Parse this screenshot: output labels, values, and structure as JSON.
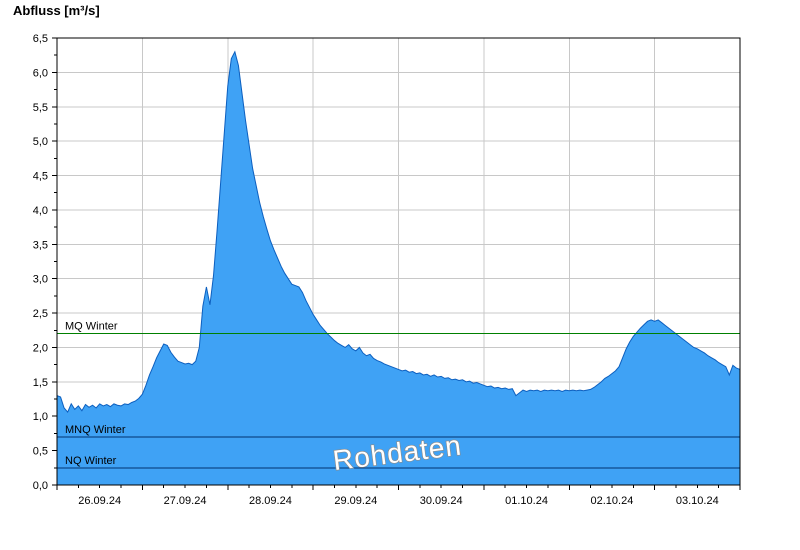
{
  "title": "Abfluss [m³/s]",
  "chart_data": {
    "type": "area",
    "title": "Abfluss [m³/s]",
    "ylabel": "Abfluss [m³/s]",
    "xlabel": "",
    "ylim": [
      0,
      6.5
    ],
    "y_tick_step": 0.5,
    "y_tick_labels": [
      "0,0",
      "0,5",
      "1,0",
      "1,5",
      "2,0",
      "2,5",
      "3,0",
      "3,5",
      "4,0",
      "4,5",
      "5,0",
      "5,5",
      "6,0",
      "6,5"
    ],
    "categories": [
      "26.09.24",
      "27.09.24",
      "28.09.24",
      "29.09.24",
      "30.09.24",
      "01.10.24",
      "02.10.24",
      "03.10.24"
    ],
    "x_points_per_day": 24,
    "x_step_hours": 1,
    "grid": true,
    "grid_color": "#c8c8c8",
    "series_fill": "#3fa2f5",
    "series_stroke": "#0c5fbf",
    "values": [
      1.3,
      1.28,
      1.12,
      1.06,
      1.18,
      1.1,
      1.15,
      1.08,
      1.17,
      1.13,
      1.16,
      1.12,
      1.18,
      1.15,
      1.17,
      1.14,
      1.18,
      1.16,
      1.15,
      1.18,
      1.17,
      1.2,
      1.22,
      1.26,
      1.32,
      1.45,
      1.6,
      1.72,
      1.85,
      1.95,
      2.05,
      2.03,
      1.93,
      1.86,
      1.8,
      1.78,
      1.76,
      1.77,
      1.75,
      1.8,
      2.0,
      2.6,
      2.88,
      2.62,
      3.05,
      3.7,
      4.4,
      5.1,
      5.8,
      6.2,
      6.3,
      6.1,
      5.7,
      5.3,
      4.95,
      4.6,
      4.35,
      4.1,
      3.9,
      3.72,
      3.55,
      3.42,
      3.3,
      3.18,
      3.08,
      3.0,
      2.92,
      2.9,
      2.88,
      2.8,
      2.68,
      2.58,
      2.48,
      2.4,
      2.32,
      2.26,
      2.2,
      2.15,
      2.1,
      2.06,
      2.03,
      2.0,
      2.04,
      1.98,
      1.95,
      2.0,
      1.92,
      1.88,
      1.9,
      1.84,
      1.81,
      1.79,
      1.76,
      1.74,
      1.72,
      1.7,
      1.68,
      1.66,
      1.67,
      1.64,
      1.65,
      1.62,
      1.63,
      1.6,
      1.61,
      1.58,
      1.6,
      1.57,
      1.58,
      1.55,
      1.56,
      1.53,
      1.54,
      1.52,
      1.53,
      1.5,
      1.51,
      1.48,
      1.49,
      1.47,
      1.45,
      1.43,
      1.44,
      1.41,
      1.42,
      1.4,
      1.41,
      1.39,
      1.4,
      1.3,
      1.34,
      1.38,
      1.36,
      1.38,
      1.37,
      1.38,
      1.36,
      1.38,
      1.37,
      1.38,
      1.37,
      1.38,
      1.36,
      1.38,
      1.37,
      1.38,
      1.37,
      1.38,
      1.37,
      1.38,
      1.39,
      1.42,
      1.46,
      1.5,
      1.55,
      1.58,
      1.62,
      1.66,
      1.72,
      1.85,
      1.98,
      2.08,
      2.16,
      2.22,
      2.28,
      2.33,
      2.38,
      2.4,
      2.38,
      2.4,
      2.36,
      2.32,
      2.28,
      2.24,
      2.2,
      2.16,
      2.12,
      2.08,
      2.04,
      2.0,
      1.98,
      1.95,
      1.92,
      1.88,
      1.85,
      1.82,
      1.78,
      1.75,
      1.72,
      1.6,
      1.74,
      1.7,
      1.68
    ],
    "reference_lines": [
      {
        "label": "MQ Winter",
        "value": 2.2,
        "color": "#008000"
      },
      {
        "label": "MNQ Winter",
        "value": 0.7,
        "color": "#00316e"
      },
      {
        "label": "NQ Winter",
        "value": 0.25,
        "color": "#00316e"
      }
    ],
    "watermark": {
      "text": "Rohdaten",
      "fill": "#ffffff",
      "stroke": "#8c8c8c"
    },
    "legend_position": "none"
  }
}
